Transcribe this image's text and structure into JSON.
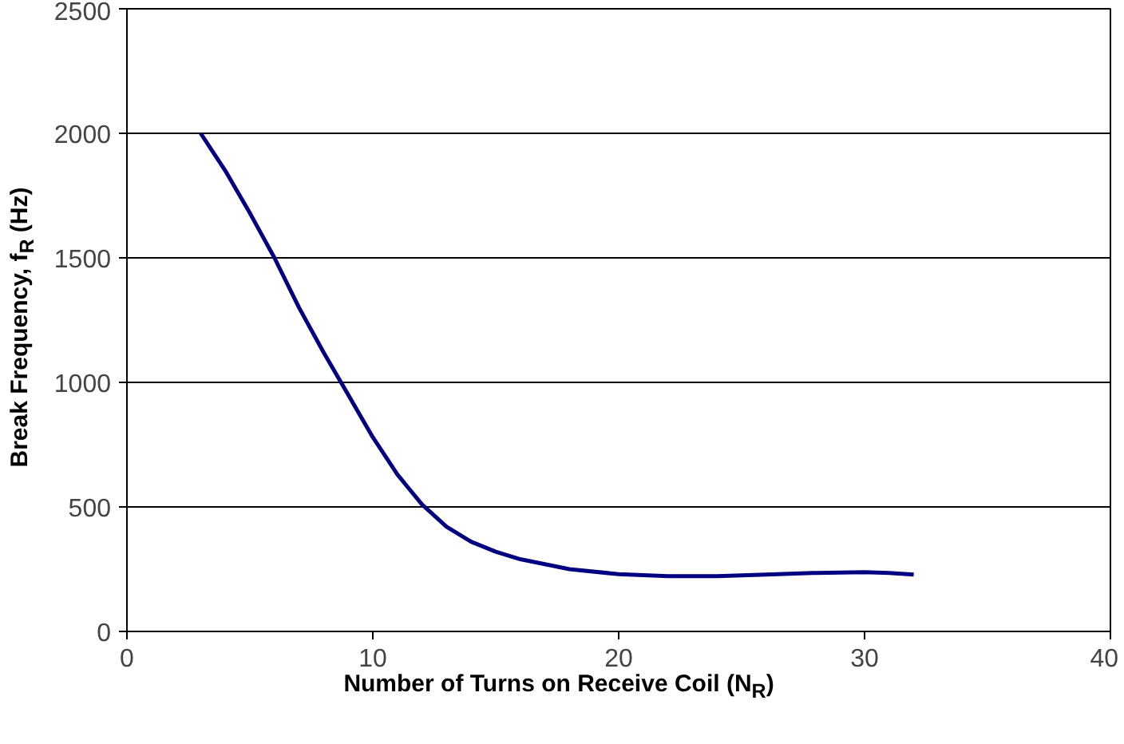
{
  "chart_data": {
    "type": "line",
    "xlabel": "Number of Turns on Receive Coil (N$_{R}$)",
    "ylabel": "Break Frequency, f$_{R}$ (Hz)",
    "x": [
      3,
      4,
      5,
      6,
      7,
      8,
      9,
      10,
      11,
      12,
      13,
      14,
      15,
      16,
      18,
      20,
      22,
      24,
      26,
      28,
      30,
      31,
      32
    ],
    "series": [
      {
        "color": "#000080",
        "values": [
          2000,
          1850,
          1680,
          1500,
          1300,
          1120,
          950,
          780,
          630,
          510,
          420,
          360,
          320,
          290,
          250,
          230,
          222,
          222,
          228,
          235,
          238,
          235,
          228
        ]
      }
    ],
    "xlim": [
      0,
      40
    ],
    "xticks": [
      0,
      10,
      20,
      30,
      40
    ],
    "ylim": [
      0,
      2500
    ],
    "yticks": [
      0,
      500,
      1000,
      1500,
      2000,
      2500
    ],
    "grid": "y",
    "marker": "none",
    "line_style": "solid"
  }
}
